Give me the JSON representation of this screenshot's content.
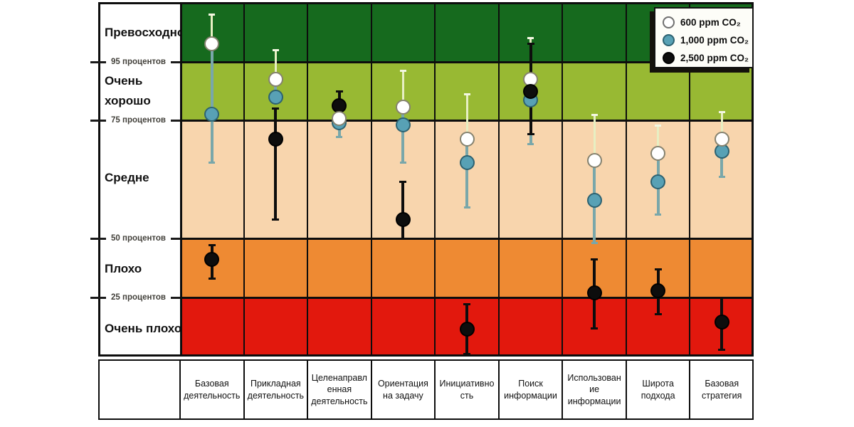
{
  "chart_data": {
    "type": "scatter",
    "title": "",
    "unit": "percentile",
    "ylim": [
      0,
      100
    ],
    "grid": "band-boundaries",
    "legend_position": "top-right",
    "legend": [
      {
        "id": "co2_600",
        "label": "600 ppm CO₂",
        "color": "#ffffff",
        "stroke": "#85826f"
      },
      {
        "id": "co2_1000",
        "label": "1,000 ppm CO₂",
        "color": "#58a1b5",
        "stroke": "#2d6271"
      },
      {
        "id": "co2_2500",
        "label": "2,500 ppm CO₂",
        "color": "#0d0d0d",
        "stroke": "#000000"
      }
    ],
    "y_bands": [
      {
        "id": "excellent",
        "label": "Превосходно",
        "range_pct": [
          95,
          100
        ],
        "color": "#166a1e"
      },
      {
        "id": "very-good",
        "label": "Очень\nхорошо",
        "range_pct": [
          75,
          95
        ],
        "color": "#98b933"
      },
      {
        "id": "average",
        "label": "Средне",
        "range_pct": [
          50,
          75
        ],
        "color": "#f8d5ad"
      },
      {
        "id": "poor",
        "label": "Плохо",
        "range_pct": [
          25,
          50
        ],
        "color": "#ee8a33"
      },
      {
        "id": "very-poor",
        "label": "Очень плохо",
        "range_pct": [
          0,
          25
        ],
        "color": "#e2180d"
      }
    ],
    "y_ticks": [
      {
        "pct": 95,
        "label": "95 процентов"
      },
      {
        "pct": 75,
        "label": "75 процентов"
      },
      {
        "pct": 50,
        "label": "50 процентов"
      },
      {
        "pct": 25,
        "label": "25 процентов"
      }
    ],
    "error_bar_colors": {
      "upper_light": "#e7efc3",
      "upper_cap": "#f3f7e2",
      "teal": "#79a7aa",
      "black": "#0d0d0d"
    },
    "columns": [
      {
        "label": "Базовая\nдеятельность",
        "series": {
          "co2_600": {
            "v": 96.5,
            "hi": 99
          },
          "co2_1000": {
            "v": 77,
            "lo": 66
          },
          "co2_2500": {
            "v": 41,
            "hi": 47,
            "lo": 33
          }
        }
      },
      {
        "label": "Прикладная\nдеятельность",
        "series": {
          "co2_600": {
            "v": 89,
            "hi": 96
          },
          "co2_1000": {
            "v": 83
          },
          "co2_2500": {
            "v": 71,
            "hi": 79,
            "lo": 54
          }
        }
      },
      {
        "label": "Целенаправл\nенная\nдеятельность",
        "series": {
          "co2_600": {
            "v": 75.5
          },
          "co2_1000": {
            "v": 74.5,
            "lo": 71.5
          },
          "co2_2500": {
            "v": 80,
            "hi": 85,
            "lo": 73.5
          }
        }
      },
      {
        "label": "Ориентация\nна задачу",
        "series": {
          "co2_600": {
            "v": 79.5,
            "hi": 92
          },
          "co2_1000": {
            "v": 74,
            "lo": 66
          },
          "co2_2500": {
            "v": 54,
            "hi": 62,
            "lo": 50
          }
        }
      },
      {
        "label": "Инициативно\nсть",
        "series": {
          "co2_600": {
            "v": 71,
            "hi": 84
          },
          "co2_1000": {
            "v": 66,
            "lo": 56.5
          },
          "co2_2500": {
            "v": 11.5,
            "hi": 22,
            "lo": 1
          }
        }
      },
      {
        "label": "Поиск\nинформации",
        "draw_order": [
          "co2_600",
          "co2_1000",
          "co2_2500"
        ],
        "series": {
          "co2_600": {
            "v": 89,
            "hi": 97
          },
          "co2_1000": {
            "v": 82,
            "lo": 70
          },
          "co2_2500": {
            "v": 85,
            "hi": 96.5,
            "lo": 72
          }
        }
      },
      {
        "label": "Использован\nие\nинформации",
        "series": {
          "co2_600": {
            "v": 66.5,
            "hi": 77
          },
          "co2_1000": {
            "v": 58,
            "lo": 48
          },
          "co2_2500": {
            "v": 27,
            "hi": 41,
            "lo": 12
          }
        }
      },
      {
        "label": "Широта\nподхода",
        "series": {
          "co2_600": {
            "v": 68,
            "hi": 74
          },
          "co2_1000": {
            "v": 62,
            "lo": 55
          },
          "co2_2500": {
            "v": 28,
            "hi": 37,
            "lo": 18
          }
        }
      },
      {
        "label": "Базовая\nстратегия",
        "series": {
          "co2_600": {
            "v": 71,
            "hi": 78
          },
          "co2_1000": {
            "v": 68.5,
            "lo": 63
          },
          "co2_2500": {
            "v": 14.5,
            "hi": 25,
            "lo": 3
          }
        }
      }
    ]
  }
}
